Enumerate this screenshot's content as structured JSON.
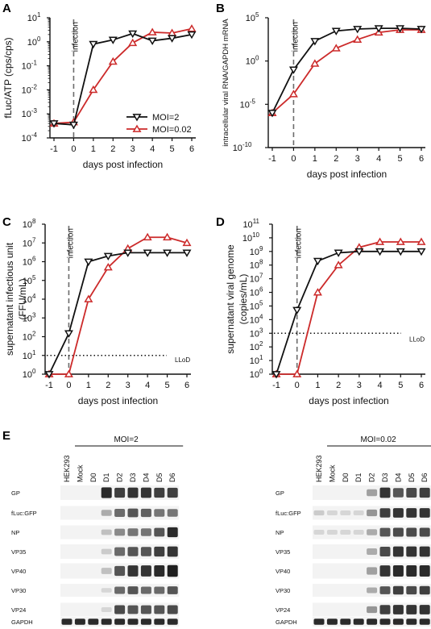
{
  "colors": {
    "moi2": "#111111",
    "moi002": "#cc2a2a",
    "dashed": "#6b6b6b"
  },
  "chart_data": [
    {
      "panel": "A",
      "type": "line",
      "ylabel": "fLuc/ATP (cps/cps)",
      "xlabel": "days post infection",
      "annotation": "infection",
      "log_y": true,
      "ylim_exp": [
        -4,
        1
      ],
      "y_ticks": [
        {
          "b": "10",
          "e": "1"
        },
        {
          "b": "10",
          "e": "0"
        },
        {
          "b": "10",
          "e": "-1"
        },
        {
          "b": "10",
          "e": "-2"
        },
        {
          "b": "10",
          "e": "-3"
        },
        {
          "b": "10",
          "e": "-4"
        }
      ],
      "x_ticks": [
        "-1",
        "0",
        "1",
        "2",
        "3",
        "4",
        "5",
        "6"
      ],
      "legend": [
        "MOI=2",
        "MOI=0.02"
      ],
      "x": [
        -1,
        0,
        1,
        2,
        3,
        4,
        5,
        6
      ],
      "series": [
        {
          "name": "MOI=2",
          "values": [
            0.0004,
            0.00035,
            0.8,
            1.2,
            2.2,
            1.1,
            1.4,
            2.0
          ]
        },
        {
          "name": "MOI=0.02",
          "values": [
            0.0004,
            0.00045,
            0.01,
            0.15,
            0.9,
            2.5,
            2.3,
            3.5
          ]
        }
      ]
    },
    {
      "panel": "B",
      "type": "line",
      "ylabel": "intracellular viral RNA/GAPDH mRNA",
      "xlabel": "days post infection",
      "annotation": "infection",
      "log_y": true,
      "ylim_exp": [
        -10,
        5
      ],
      "y_ticks": [
        {
          "b": "10",
          "e": "5"
        },
        {
          "b": "10",
          "e": "0"
        },
        {
          "b": "10",
          "e": "-5"
        },
        {
          "b": "10",
          "e": "-10"
        }
      ],
      "x_ticks": [
        "-1",
        "0",
        "1",
        "2",
        "3",
        "4",
        "5",
        "6"
      ],
      "x": [
        -1,
        0,
        1,
        2,
        3,
        4,
        5,
        6
      ],
      "series": [
        {
          "name": "MOI=2",
          "values": [
            1e-06,
            0.1,
            200,
            3000,
            5000,
            6000,
            6000,
            5000
          ]
        },
        {
          "name": "MOI=0.02",
          "values": [
            1e-06,
            0.00015,
            0.5,
            30,
            300,
            2000,
            4000,
            4000
          ]
        }
      ]
    },
    {
      "panel": "C",
      "type": "line",
      "ylabel": "supernatant infectious unit (FFU/mL)",
      "ylabel_lines": [
        "supernatant infectious unit",
        "(FFU/mL)"
      ],
      "xlabel": "days post infection",
      "annotation": "infection",
      "lod_label": "LLoD",
      "lod": 10,
      "log_y": true,
      "ylim_exp": [
        0,
        8
      ],
      "y_ticks": [
        {
          "b": "10",
          "e": "8"
        },
        {
          "b": "10",
          "e": "7"
        },
        {
          "b": "10",
          "e": "6"
        },
        {
          "b": "10",
          "e": "5"
        },
        {
          "b": "10",
          "e": "4"
        },
        {
          "b": "10",
          "e": "3"
        },
        {
          "b": "10",
          "e": "2"
        },
        {
          "b": "10",
          "e": "1"
        },
        {
          "b": "10",
          "e": "0"
        }
      ],
      "x_ticks": [
        "-1",
        "0",
        "1",
        "2",
        "3",
        "4",
        "5",
        "6"
      ],
      "x": [
        -1,
        0,
        1,
        2,
        3,
        4,
        5,
        6
      ],
      "series": [
        {
          "name": "MOI=2",
          "values": [
            1,
            150,
            1000000,
            2000000,
            3000000,
            3000000,
            3000000,
            3000000
          ]
        },
        {
          "name": "MOI=0.02",
          "values": [
            1,
            1,
            10000,
            500000,
            5000000,
            20000000,
            20000000,
            10000000
          ]
        }
      ]
    },
    {
      "panel": "D",
      "type": "line",
      "ylabel": "supernatant viral genome (copies/mL)",
      "ylabel_lines": [
        "supernatant viral genome",
        "(copies/mL)"
      ],
      "xlabel": "days post infection",
      "annotation": "infection",
      "lod_label": "LLoD",
      "lod": 1000,
      "log_y": true,
      "ylim_exp": [
        0,
        11
      ],
      "y_ticks": [
        {
          "b": "10",
          "e": "11"
        },
        {
          "b": "10",
          "e": "10"
        },
        {
          "b": "10",
          "e": "9"
        },
        {
          "b": "10",
          "e": "8"
        },
        {
          "b": "10",
          "e": "7"
        },
        {
          "b": "10",
          "e": "6"
        },
        {
          "b": "10",
          "e": "5"
        },
        {
          "b": "10",
          "e": "4"
        },
        {
          "b": "10",
          "e": "3"
        },
        {
          "b": "10",
          "e": "2"
        },
        {
          "b": "10",
          "e": "1"
        },
        {
          "b": "10",
          "e": "0"
        }
      ],
      "x_ticks": [
        "-1",
        "0",
        "1",
        "2",
        "3",
        "4",
        "5",
        "6"
      ],
      "x": [
        -1,
        0,
        1,
        2,
        3,
        4,
        5,
        6
      ],
      "series": [
        {
          "name": "MOI=2",
          "values": [
            1,
            50000,
            200000000,
            800000000,
            1000000000,
            1000000000,
            1000000000,
            1000000000
          ]
        },
        {
          "name": "MOI=0.02",
          "values": [
            1,
            1,
            1000000,
            100000000,
            2000000000,
            5000000000,
            5000000000,
            5000000000
          ]
        }
      ]
    }
  ],
  "blots": [
    {
      "title": "MOI=2",
      "lanes": [
        "HEK293",
        "Mock",
        "D0",
        "D1",
        "D2",
        "D3",
        "D4",
        "D5",
        "D6"
      ],
      "rows": [
        {
          "label": "GP",
          "bands": [
            0,
            0,
            0,
            0.9,
            0.8,
            0.85,
            0.85,
            0.8,
            0.8
          ]
        },
        {
          "label": "fLuc:GFP",
          "bands": [
            0,
            0,
            0,
            0.3,
            0.6,
            0.7,
            0.65,
            0.55,
            0.55
          ]
        },
        {
          "label": "NP",
          "bands": [
            0,
            0,
            0,
            0.2,
            0.45,
            0.55,
            0.55,
            0.7,
            0.9
          ]
        },
        {
          "label": "VP35",
          "bands": [
            0,
            0,
            0,
            0.15,
            0.6,
            0.7,
            0.7,
            0.8,
            0.85
          ]
        },
        {
          "label": "VP40",
          "bands": [
            0,
            0,
            0,
            0.2,
            0.7,
            0.85,
            0.85,
            0.9,
            0.95
          ]
        },
        {
          "label": "VP30",
          "bands": [
            0,
            0,
            0,
            0.1,
            0.6,
            0.7,
            0.6,
            0.6,
            0.7
          ]
        },
        {
          "label": "VP24",
          "bands": [
            0,
            0,
            0,
            0.1,
            0.75,
            0.7,
            0.7,
            0.7,
            0.75
          ]
        },
        {
          "label": "GAPDH",
          "bands": [
            0.9,
            0.9,
            0.9,
            0.9,
            0.9,
            0.9,
            0.9,
            0.9,
            0.9
          ]
        }
      ]
    },
    {
      "title": "MOI=0.02",
      "lanes": [
        "HEK293",
        "Mock",
        "D0",
        "D1",
        "D2",
        "D3",
        "D4",
        "D5",
        "D6"
      ],
      "rows": [
        {
          "label": "GP",
          "bands": [
            0,
            0,
            0,
            0,
            0.35,
            0.85,
            0.7,
            0.75,
            0.8
          ]
        },
        {
          "label": "fLuc:GFP",
          "bands": [
            0.15,
            0.1,
            0.1,
            0.1,
            0.4,
            0.8,
            0.85,
            0.85,
            0.85
          ]
        },
        {
          "label": "NP",
          "bands": [
            0.1,
            0.1,
            0.1,
            0.1,
            0.3,
            0.7,
            0.75,
            0.75,
            0.75
          ]
        },
        {
          "label": "VP35",
          "bands": [
            0,
            0,
            0,
            0,
            0.3,
            0.75,
            0.85,
            0.85,
            0.85
          ]
        },
        {
          "label": "VP40",
          "bands": [
            0,
            0,
            0,
            0,
            0.35,
            0.85,
            0.9,
            0.9,
            0.9
          ]
        },
        {
          "label": "VP30",
          "bands": [
            0,
            0,
            0,
            0,
            0.3,
            0.7,
            0.8,
            0.75,
            0.8
          ]
        },
        {
          "label": "VP24",
          "bands": [
            0,
            0,
            0,
            0,
            0.4,
            0.8,
            0.85,
            0.85,
            0.85
          ]
        },
        {
          "label": "GAPDH",
          "bands": [
            0.9,
            0.9,
            0.9,
            0.9,
            0.9,
            0.9,
            0.9,
            0.9,
            0.9
          ]
        }
      ]
    }
  ],
  "panel_labels": [
    "A",
    "B",
    "C",
    "D",
    "E"
  ]
}
